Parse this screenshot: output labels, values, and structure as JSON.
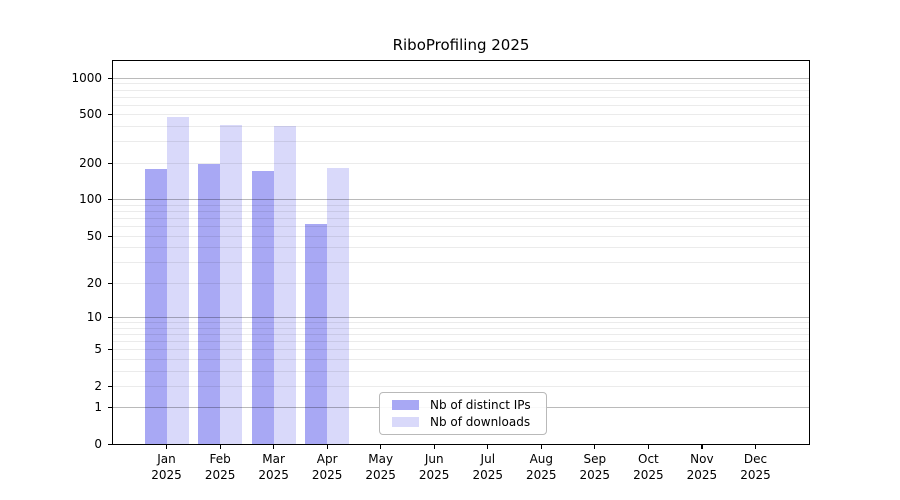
{
  "chart_data": {
    "type": "bar",
    "title": "RiboProfiling 2025",
    "categories": [
      "Jan",
      "Feb",
      "Mar",
      "Apr",
      "May",
      "Jun",
      "Jul",
      "Aug",
      "Sep",
      "Oct",
      "Nov",
      "Dec"
    ],
    "year": "2025",
    "series": [
      {
        "name": "Nb of distinct IPs",
        "color": "#a8a8f4",
        "values": [
          179,
          197,
          172,
          62,
          null,
          null,
          null,
          null,
          null,
          null,
          null,
          null
        ]
      },
      {
        "name": "Nb of downloads",
        "color": "#d9d9fa",
        "values": [
          476,
          407,
          402,
          181,
          null,
          null,
          null,
          null,
          null,
          null,
          null,
          null
        ]
      }
    ],
    "yscale": "pseudo-log log10(1+y)",
    "yticks": [
      0,
      1,
      2,
      5,
      10,
      20,
      50,
      100,
      200,
      500,
      1000
    ],
    "ylim": [
      0,
      1370
    ],
    "xlabel": "",
    "ylabel": "",
    "grid": "on",
    "legend_position": "lower center",
    "colors": {
      "major_gridline": "#bababa",
      "minor_gridline": "#ebebeb",
      "axis": "#000000",
      "background": "#ffffff"
    }
  }
}
